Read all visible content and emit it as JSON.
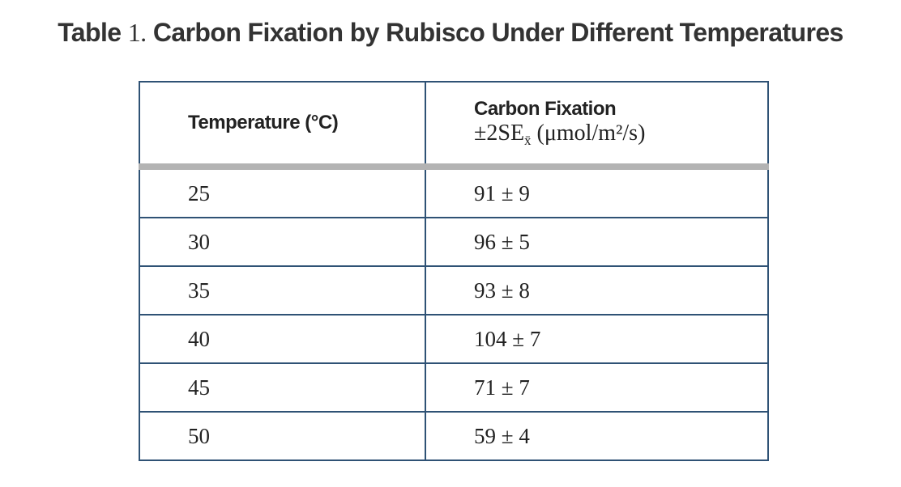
{
  "title": {
    "label": "Table",
    "number": "1.",
    "text": "Carbon Fixation by Rubisco Under Different Temperatures"
  },
  "table": {
    "header": {
      "temperature": "Temperature (°C)",
      "fixation": {
        "title": "Carbon Fixation",
        "prefix": "±2SE",
        "subscript": "x̄",
        "unit": "(μmol/m²/s)"
      }
    },
    "rows": [
      [
        25,
        "91 ± 9"
      ],
      [
        30,
        "96 ± 5"
      ],
      [
        35,
        "93 ± 8"
      ],
      [
        40,
        "104 ± 7"
      ],
      [
        45,
        "71 ± 7"
      ],
      [
        50,
        "59 ± 4"
      ]
    ]
  }
}
